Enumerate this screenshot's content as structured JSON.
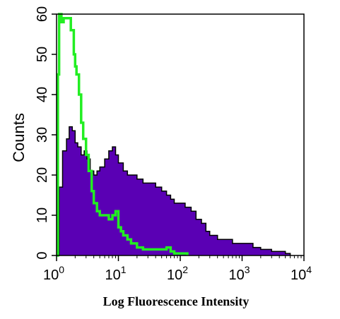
{
  "chart_data": {
    "type": "area",
    "xlabel": "Log Fluorescence Intensity",
    "ylabel": "Counts",
    "x_scale": "log",
    "xlim": [
      1,
      10000
    ],
    "ylim": [
      0,
      60
    ],
    "x_ticks": [
      {
        "base": "10",
        "exp": "0",
        "value": 1
      },
      {
        "base": "10",
        "exp": "1",
        "value": 10
      },
      {
        "base": "10",
        "exp": "2",
        "value": 100
      },
      {
        "base": "10",
        "exp": "3",
        "value": 1000
      },
      {
        "base": "10",
        "exp": "4",
        "value": 10000
      }
    ],
    "y_ticks": [
      "0",
      "10",
      "20",
      "30",
      "40",
      "50",
      "60"
    ],
    "grid": false,
    "series": [
      {
        "style": "filled",
        "color": "#5a00b4",
        "outline": "#000000",
        "x": [
          1.0,
          1.1,
          1.25,
          1.45,
          1.6,
          1.8,
          2.0,
          2.2,
          2.5,
          2.8,
          3.1,
          3.5,
          4.0,
          4.5,
          5.0,
          6.0,
          7.0,
          8.0,
          9.0,
          10,
          12,
          14,
          17,
          20,
          25,
          30,
          40,
          50,
          60,
          70,
          80,
          100,
          120,
          150,
          180,
          220,
          260,
          300,
          400,
          500,
          700,
          1000,
          1500,
          2000,
          3000,
          4000,
          5000,
          6000
        ],
        "values": [
          0,
          17,
          26,
          29,
          32,
          31,
          28,
          27,
          25,
          26,
          24,
          21,
          20,
          21,
          22,
          24,
          26,
          27,
          25,
          23,
          21,
          20,
          20,
          19,
          18,
          18,
          17,
          16,
          15,
          14,
          13,
          13,
          12,
          11,
          9,
          8,
          6,
          5,
          4,
          4,
          3,
          3,
          2,
          1.5,
          1,
          1,
          0.5,
          0
        ]
      },
      {
        "style": "line",
        "color": "#22ee22",
        "x": [
          1.0,
          1.05,
          1.1,
          1.2,
          1.3,
          1.5,
          1.7,
          1.9,
          2.0,
          2.1,
          2.3,
          2.5,
          2.7,
          3.0,
          3.3,
          3.7,
          4.0,
          4.5,
          5.0,
          6.0,
          7.0,
          8.0,
          9.0,
          10,
          11,
          12,
          14,
          16,
          20,
          25,
          30,
          40,
          50,
          60,
          70,
          80,
          100,
          130
        ],
        "values": [
          0,
          45,
          60,
          58,
          59,
          59,
          56,
          50,
          47,
          45,
          40,
          33,
          29,
          25,
          21,
          16,
          13,
          11,
          10,
          10,
          9,
          10,
          11,
          7,
          6,
          5,
          4,
          3,
          2,
          1.5,
          1.5,
          1.5,
          1.5,
          2,
          1,
          0.5,
          0.5,
          0
        ]
      }
    ]
  }
}
